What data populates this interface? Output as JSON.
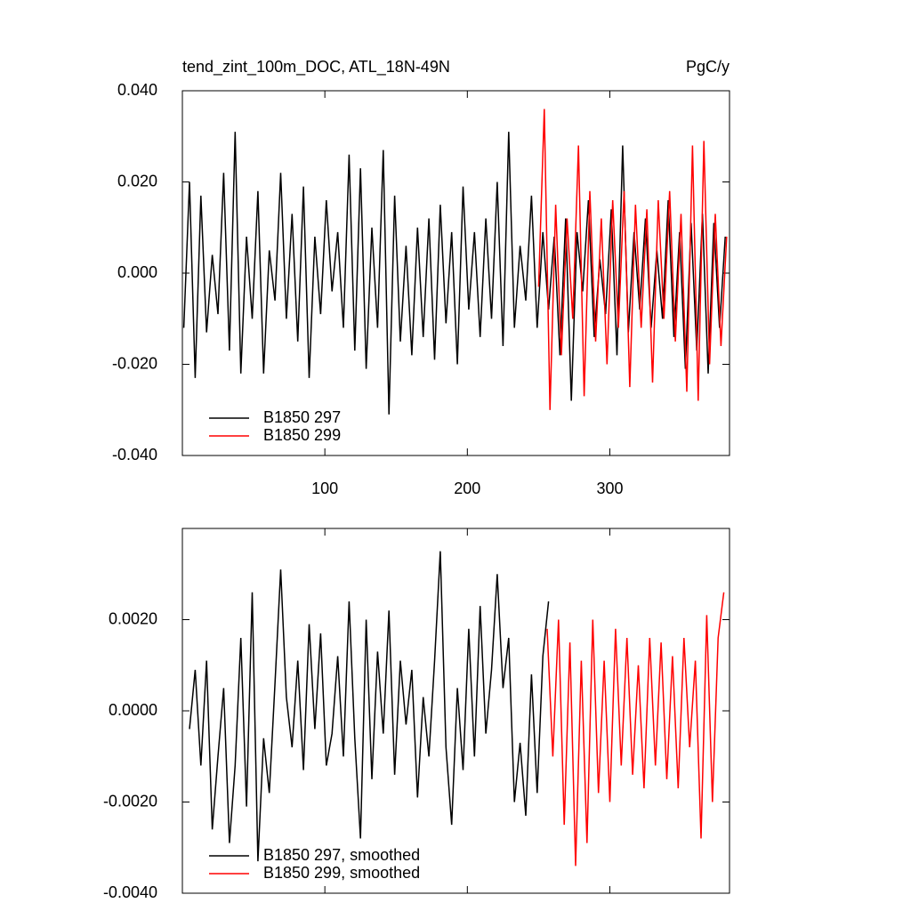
{
  "chart_data": [
    {
      "type": "line",
      "title": "tend_zint_100m_DOC, ATL_18N-49N",
      "units": "PgC/y",
      "xlim": [
        0,
        384
      ],
      "xticks": [
        100,
        200,
        300
      ],
      "ylim": [
        -0.04,
        0.04
      ],
      "yticks": [
        {
          "value": -0.04,
          "label": "-0.040"
        },
        {
          "value": -0.02,
          "label": "-0.020"
        },
        {
          "value": 0,
          "label": "0.000"
        },
        {
          "value": 0.02,
          "label": "0.020"
        },
        {
          "value": 0.04,
          "label": "0.040"
        }
      ],
      "series": [
        {
          "name": "B1850 297",
          "color": "#000000",
          "x": [
            1,
            5,
            9,
            13,
            17,
            21,
            25,
            29,
            33,
            37,
            41,
            45,
            49,
            53,
            57,
            61,
            65,
            69,
            73,
            77,
            81,
            85,
            89,
            93,
            97,
            101,
            105,
            109,
            113,
            117,
            121,
            125,
            129,
            133,
            137,
            141,
            145,
            149,
            153,
            157,
            161,
            165,
            169,
            173,
            177,
            181,
            185,
            189,
            193,
            197,
            201,
            205,
            209,
            213,
            217,
            221,
            225,
            229,
            233,
            237,
            241,
            245,
            249,
            253,
            257,
            261,
            265,
            269,
            273,
            277,
            281,
            285,
            289,
            293,
            297,
            301,
            305,
            309,
            313,
            317,
            321,
            325,
            329,
            333,
            337,
            341,
            345,
            349,
            353,
            357,
            361,
            365,
            369,
            373,
            377,
            381
          ],
          "values": [
            -0.012,
            0.02,
            -0.023,
            0.017,
            -0.013,
            0.004,
            -0.009,
            0.022,
            -0.017,
            0.031,
            -0.022,
            0.008,
            -0.01,
            0.018,
            -0.022,
            0.005,
            -0.006,
            0.022,
            -0.01,
            0.013,
            -0.015,
            0.019,
            -0.023,
            0.008,
            -0.009,
            0.016,
            -0.004,
            0.009,
            -0.012,
            0.026,
            -0.017,
            0.023,
            -0.021,
            0.01,
            -0.012,
            0.027,
            -0.031,
            0.017,
            -0.015,
            0.006,
            -0.018,
            0.01,
            -0.014,
            0.012,
            -0.019,
            0.015,
            -0.011,
            0.009,
            -0.02,
            0.019,
            -0.008,
            0.009,
            -0.014,
            0.012,
            -0.01,
            0.02,
            -0.016,
            0.031,
            -0.012,
            0.006,
            -0.006,
            0.017,
            -0.012,
            0.009,
            -0.008,
            0.008,
            -0.018,
            0.012,
            -0.028,
            0.009,
            -0.004,
            0.016,
            -0.014,
            0.003,
            -0.009,
            0.014,
            -0.018,
            0.028,
            -0.013,
            0.009,
            -0.008,
            0.012,
            -0.012,
            0.005,
            -0.01,
            0.016,
            -0.014,
            0.009,
            -0.021,
            0.011,
            -0.017,
            0.013,
            -0.022,
            0.011,
            -0.012,
            0.008
          ]
        },
        {
          "name": "B1850 299",
          "color": "#ff0000",
          "x": [
            250,
            254,
            258,
            262,
            266,
            270,
            274,
            278,
            282,
            286,
            290,
            294,
            298,
            302,
            306,
            310,
            314,
            318,
            322,
            326,
            330,
            334,
            338,
            342,
            346,
            350,
            354,
            358,
            362,
            366,
            370,
            374,
            378,
            382
          ],
          "values": [
            -0.003,
            0.036,
            -0.03,
            0.015,
            -0.018,
            0.012,
            -0.01,
            0.028,
            -0.027,
            0.018,
            -0.015,
            0.012,
            -0.02,
            0.016,
            -0.012,
            0.018,
            -0.025,
            0.015,
            -0.012,
            0.014,
            -0.024,
            0.016,
            -0.01,
            0.018,
            -0.015,
            0.013,
            -0.026,
            0.028,
            -0.028,
            0.029,
            -0.02,
            0.013,
            -0.016,
            0.008
          ]
        }
      ]
    },
    {
      "type": "line",
      "xlim": [
        0,
        384
      ],
      "ylim": [
        -0.004,
        0.004
      ],
      "yticks": [
        {
          "value": -0.004,
          "label": "-0.0040"
        },
        {
          "value": -0.002,
          "label": "-0.0020"
        },
        {
          "value": 0,
          "label": "0.0000"
        },
        {
          "value": 0.002,
          "label": "0.0020"
        }
      ],
      "series": [
        {
          "name": "B1850 297, smoothed",
          "color": "#000000",
          "x": [
            5,
            9,
            13,
            17,
            21,
            25,
            29,
            33,
            37,
            41,
            45,
            49,
            53,
            57,
            61,
            65,
            69,
            73,
            77,
            81,
            85,
            89,
            93,
            97,
            101,
            105,
            109,
            113,
            117,
            121,
            125,
            129,
            133,
            137,
            141,
            145,
            149,
            153,
            157,
            161,
            165,
            169,
            173,
            177,
            181,
            185,
            189,
            193,
            197,
            201,
            205,
            209,
            213,
            217,
            221,
            225,
            229,
            233,
            237,
            241,
            245,
            249,
            253,
            257
          ],
          "values": [
            -0.0004,
            0.0009,
            -0.0012,
            0.0011,
            -0.0026,
            -0.001,
            0.0005,
            -0.0029,
            -0.0012,
            0.0016,
            -0.0021,
            0.0026,
            -0.0033,
            -0.0006,
            -0.0018,
            0.0006,
            0.0031,
            0.0003,
            -0.0008,
            0.0011,
            -0.0013,
            0.0019,
            -0.0004,
            0.0017,
            -0.0012,
            -0.0005,
            0.0012,
            -0.001,
            0.0024,
            -0.0006,
            -0.0028,
            0.002,
            -0.0015,
            0.0013,
            -0.0005,
            0.0022,
            -0.0014,
            0.0011,
            -0.0003,
            0.0009,
            -0.0019,
            0.0003,
            -0.001,
            0.0011,
            0.0035,
            -0.0008,
            -0.0025,
            0.0005,
            -0.0013,
            0.0018,
            -0.001,
            0.0023,
            -0.0005,
            0.0009,
            0.003,
            0.0005,
            0.0016,
            -0.002,
            -0.0007,
            -0.0023,
            0.0008,
            -0.0018,
            0.0012,
            0.0024
          ]
        },
        {
          "name": "B1850 299, smoothed",
          "color": "#ff0000",
          "x": [
            256,
            260,
            264,
            268,
            272,
            276,
            280,
            284,
            288,
            292,
            296,
            300,
            304,
            308,
            312,
            316,
            320,
            324,
            328,
            332,
            336,
            340,
            344,
            348,
            352,
            356,
            360,
            364,
            368,
            372,
            376,
            380
          ],
          "values": [
            0.0018,
            -0.001,
            0.002,
            -0.0025,
            0.0015,
            -0.0034,
            0.0011,
            -0.0029,
            0.002,
            -0.0018,
            0.0011,
            -0.002,
            0.0018,
            -0.0012,
            0.0016,
            -0.0014,
            0.001,
            -0.0017,
            0.0016,
            -0.0012,
            0.0015,
            -0.0015,
            0.0012,
            -0.0017,
            0.0016,
            -0.0008,
            0.0011,
            -0.0028,
            0.0021,
            -0.002,
            0.0016,
            0.0026
          ]
        }
      ]
    }
  ]
}
